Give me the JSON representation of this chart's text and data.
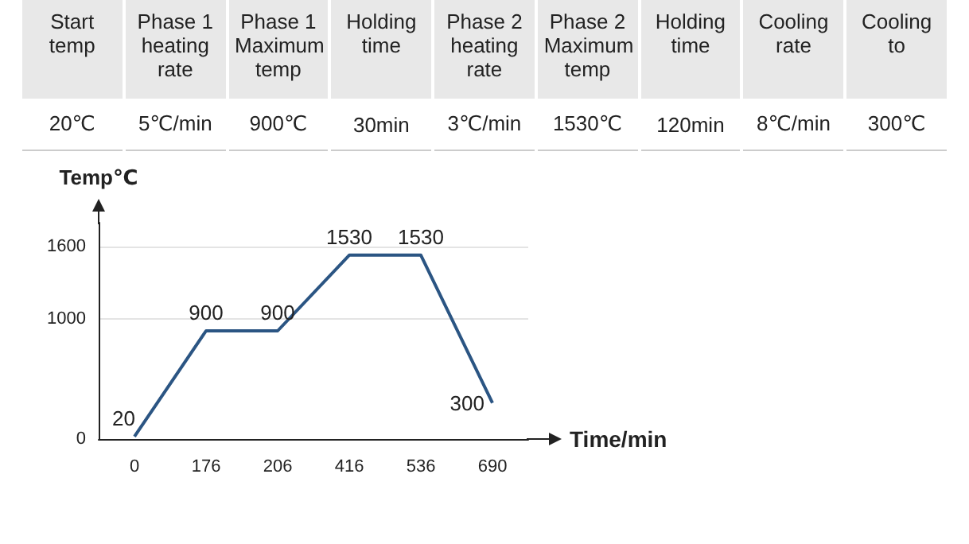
{
  "chart_data": [
    {
      "type": "other",
      "categories": [
        "Start temp",
        "Phase 1 heating rate",
        "Phase 1 Maximum temp",
        "Holding time",
        "Phase 2 heating rate",
        "Phase 2 Maximum temp",
        "Holding time",
        "Cooling rate",
        "Cooling to"
      ],
      "annotations": [
        "20℃",
        "5℃/min",
        "900℃",
        "30min",
        "3℃/min",
        "1530℃",
        "120min",
        "8℃/min",
        "300℃"
      ]
    },
    {
      "type": "line",
      "xlabel": "Time/min",
      "ylabel": "Temp℃",
      "categories": [
        "0",
        "176",
        "206",
        "416",
        "536",
        "690"
      ],
      "values": [
        20,
        900,
        900,
        1530,
        1530,
        300
      ],
      "color": "#2b5583",
      "ylim": [
        0,
        1800
      ],
      "yticks": [
        0,
        1000,
        1600
      ],
      "grid": "y",
      "marker": "none",
      "data_labels": true
    }
  ]
}
